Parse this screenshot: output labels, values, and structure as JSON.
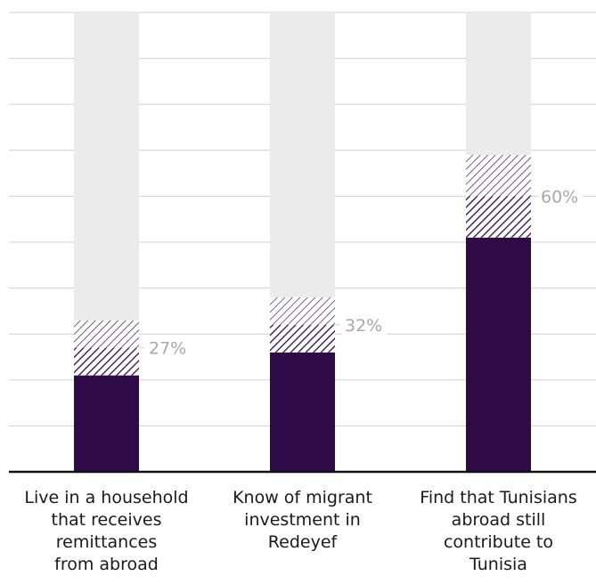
{
  "chart_data": {
    "type": "bar",
    "stacked": true,
    "categories": [
      "Live in a household\nthat receives\nremittances\nfrom abroad",
      "Know of migrant\ninvestment in\nRedeyef",
      "Find that Tunisians\nabroad still\ncontribute to\nTunisia"
    ],
    "series": [
      {
        "values": [
          21,
          26,
          51
        ]
      },
      {
        "values": [
          6,
          6,
          9
        ]
      },
      {
        "values": [
          6,
          6,
          9
        ]
      },
      {
        "values": [
          67,
          62,
          31
        ]
      }
    ],
    "value_labels": [
      "27%",
      "32%",
      "60%"
    ],
    "label_values": [
      27,
      32,
      60
    ],
    "ylim": [
      0,
      100
    ],
    "grid": true,
    "legend": "none",
    "colors": {
      "solid": "#2e0a47",
      "hatch_line": "#2e0a47",
      "background_bar": "#ebebeb",
      "grid": "#d0d0d0",
      "axis": "#111111",
      "value_label": "#a8a8a8"
    }
  }
}
